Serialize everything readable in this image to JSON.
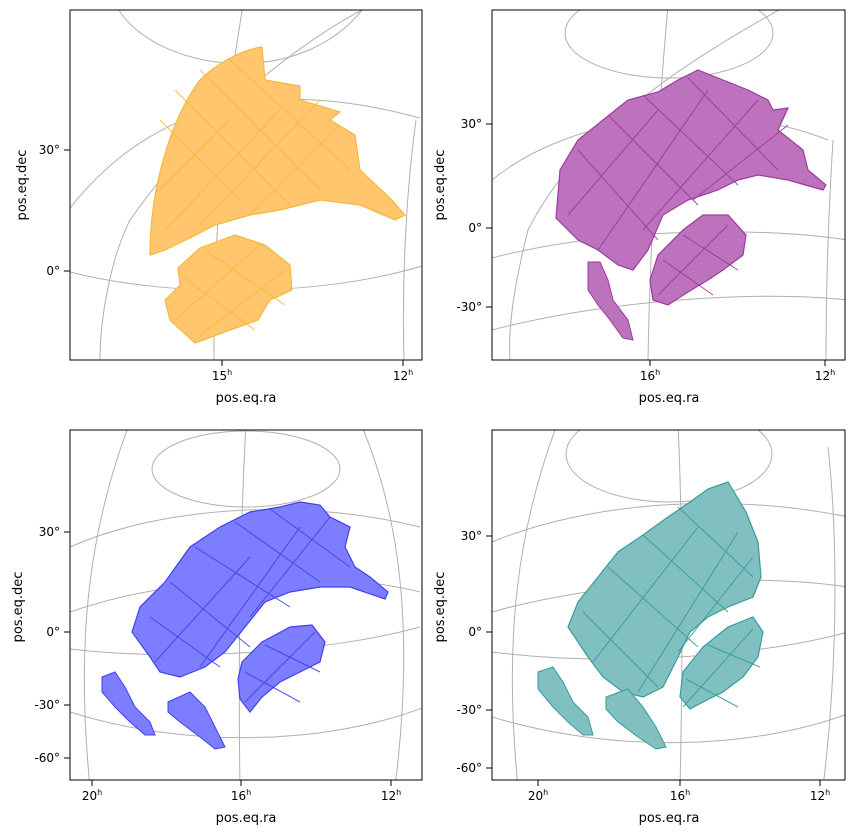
{
  "chart_data": [
    {
      "type": "sky-coverage-map",
      "panel": "top-left",
      "xlabel": "pos.eq.ra",
      "ylabel": "pos.eq.dec",
      "x_ticks": [
        {
          "label": "15",
          "unit": "h"
        },
        {
          "label": "12",
          "unit": "h"
        }
      ],
      "y_ticks": [
        "30°",
        "0°"
      ],
      "fill_color": "#ffc66e",
      "edge_color": "#f6b73c",
      "grid": true,
      "regions": [
        {
          "name": "northern-region",
          "ra_hours": [
            16.8,
            11.6
          ],
          "dec_deg": [
            5,
            48
          ]
        },
        {
          "name": "southern-region",
          "ra_hours": [
            15.7,
            13.8
          ],
          "dec_deg": [
            -23,
            9
          ]
        }
      ]
    },
    {
      "type": "sky-coverage-map",
      "panel": "top-right",
      "xlabel": "pos.eq.ra",
      "ylabel": "pos.eq.dec",
      "x_ticks": [
        {
          "label": "16",
          "unit": "h"
        },
        {
          "label": "12",
          "unit": "h"
        }
      ],
      "y_ticks": [
        "30°",
        "0°",
        "-30°"
      ],
      "fill_color": "#bc72bc",
      "edge_color": "#9b3b9b",
      "grid": true,
      "regions": [
        {
          "name": "northern-region",
          "ra_hours": [
            19.2,
            12.1
          ],
          "dec_deg": [
            -5,
            45
          ]
        },
        {
          "name": "southern-region",
          "ra_hours": [
            16.0,
            13.6
          ],
          "dec_deg": [
            -28,
            6
          ]
        },
        {
          "name": "southern-tail",
          "ra_hours": [
            18.0,
            16.5
          ],
          "dec_deg": [
            -40,
            -18
          ]
        }
      ]
    },
    {
      "type": "sky-coverage-map",
      "panel": "bottom-left",
      "xlabel": "pos.eq.ra",
      "ylabel": "pos.eq.dec",
      "x_ticks": [
        {
          "label": "20",
          "unit": "h"
        },
        {
          "label": "16",
          "unit": "h"
        },
        {
          "label": "12",
          "unit": "h"
        }
      ],
      "y_ticks": [
        "30°",
        "0°",
        "-30°",
        "-60°"
      ],
      "fill_color": "#7d7dff",
      "edge_color": "#4040ee",
      "grid": true,
      "regions": [
        {
          "name": "northern-region",
          "ra_hours": [
            19.4,
            12.3
          ],
          "dec_deg": [
            -15,
            42
          ]
        },
        {
          "name": "southern-region",
          "ra_hours": [
            15.6,
            13.5
          ],
          "dec_deg": [
            -35,
            5
          ]
        },
        {
          "name": "southern-tail",
          "ra_hours": [
            21.0,
            16.5
          ],
          "dec_deg": [
            -60,
            -20
          ]
        }
      ]
    },
    {
      "type": "sky-coverage-map",
      "panel": "bottom-right",
      "xlabel": "pos.eq.ra",
      "ylabel": "pos.eq.dec",
      "x_ticks": [
        {
          "label": "20",
          "unit": "h"
        },
        {
          "label": "16",
          "unit": "h"
        },
        {
          "label": "12",
          "unit": "h"
        }
      ],
      "y_ticks": [
        "30°",
        "0°",
        "-30°",
        "-60°"
      ],
      "fill_color": "#80c0c0",
      "edge_color": "#3a9a9a",
      "grid": true,
      "regions": [
        {
          "name": "northern-region",
          "ra_hours": [
            19.5,
            13.4
          ],
          "dec_deg": [
            -15,
            50
          ]
        },
        {
          "name": "southern-region",
          "ra_hours": [
            15.8,
            13.6
          ],
          "dec_deg": [
            -35,
            5
          ]
        },
        {
          "name": "southern-tail",
          "ra_hours": [
            21.0,
            16.5
          ],
          "dec_deg": [
            -60,
            -20
          ]
        }
      ]
    }
  ]
}
